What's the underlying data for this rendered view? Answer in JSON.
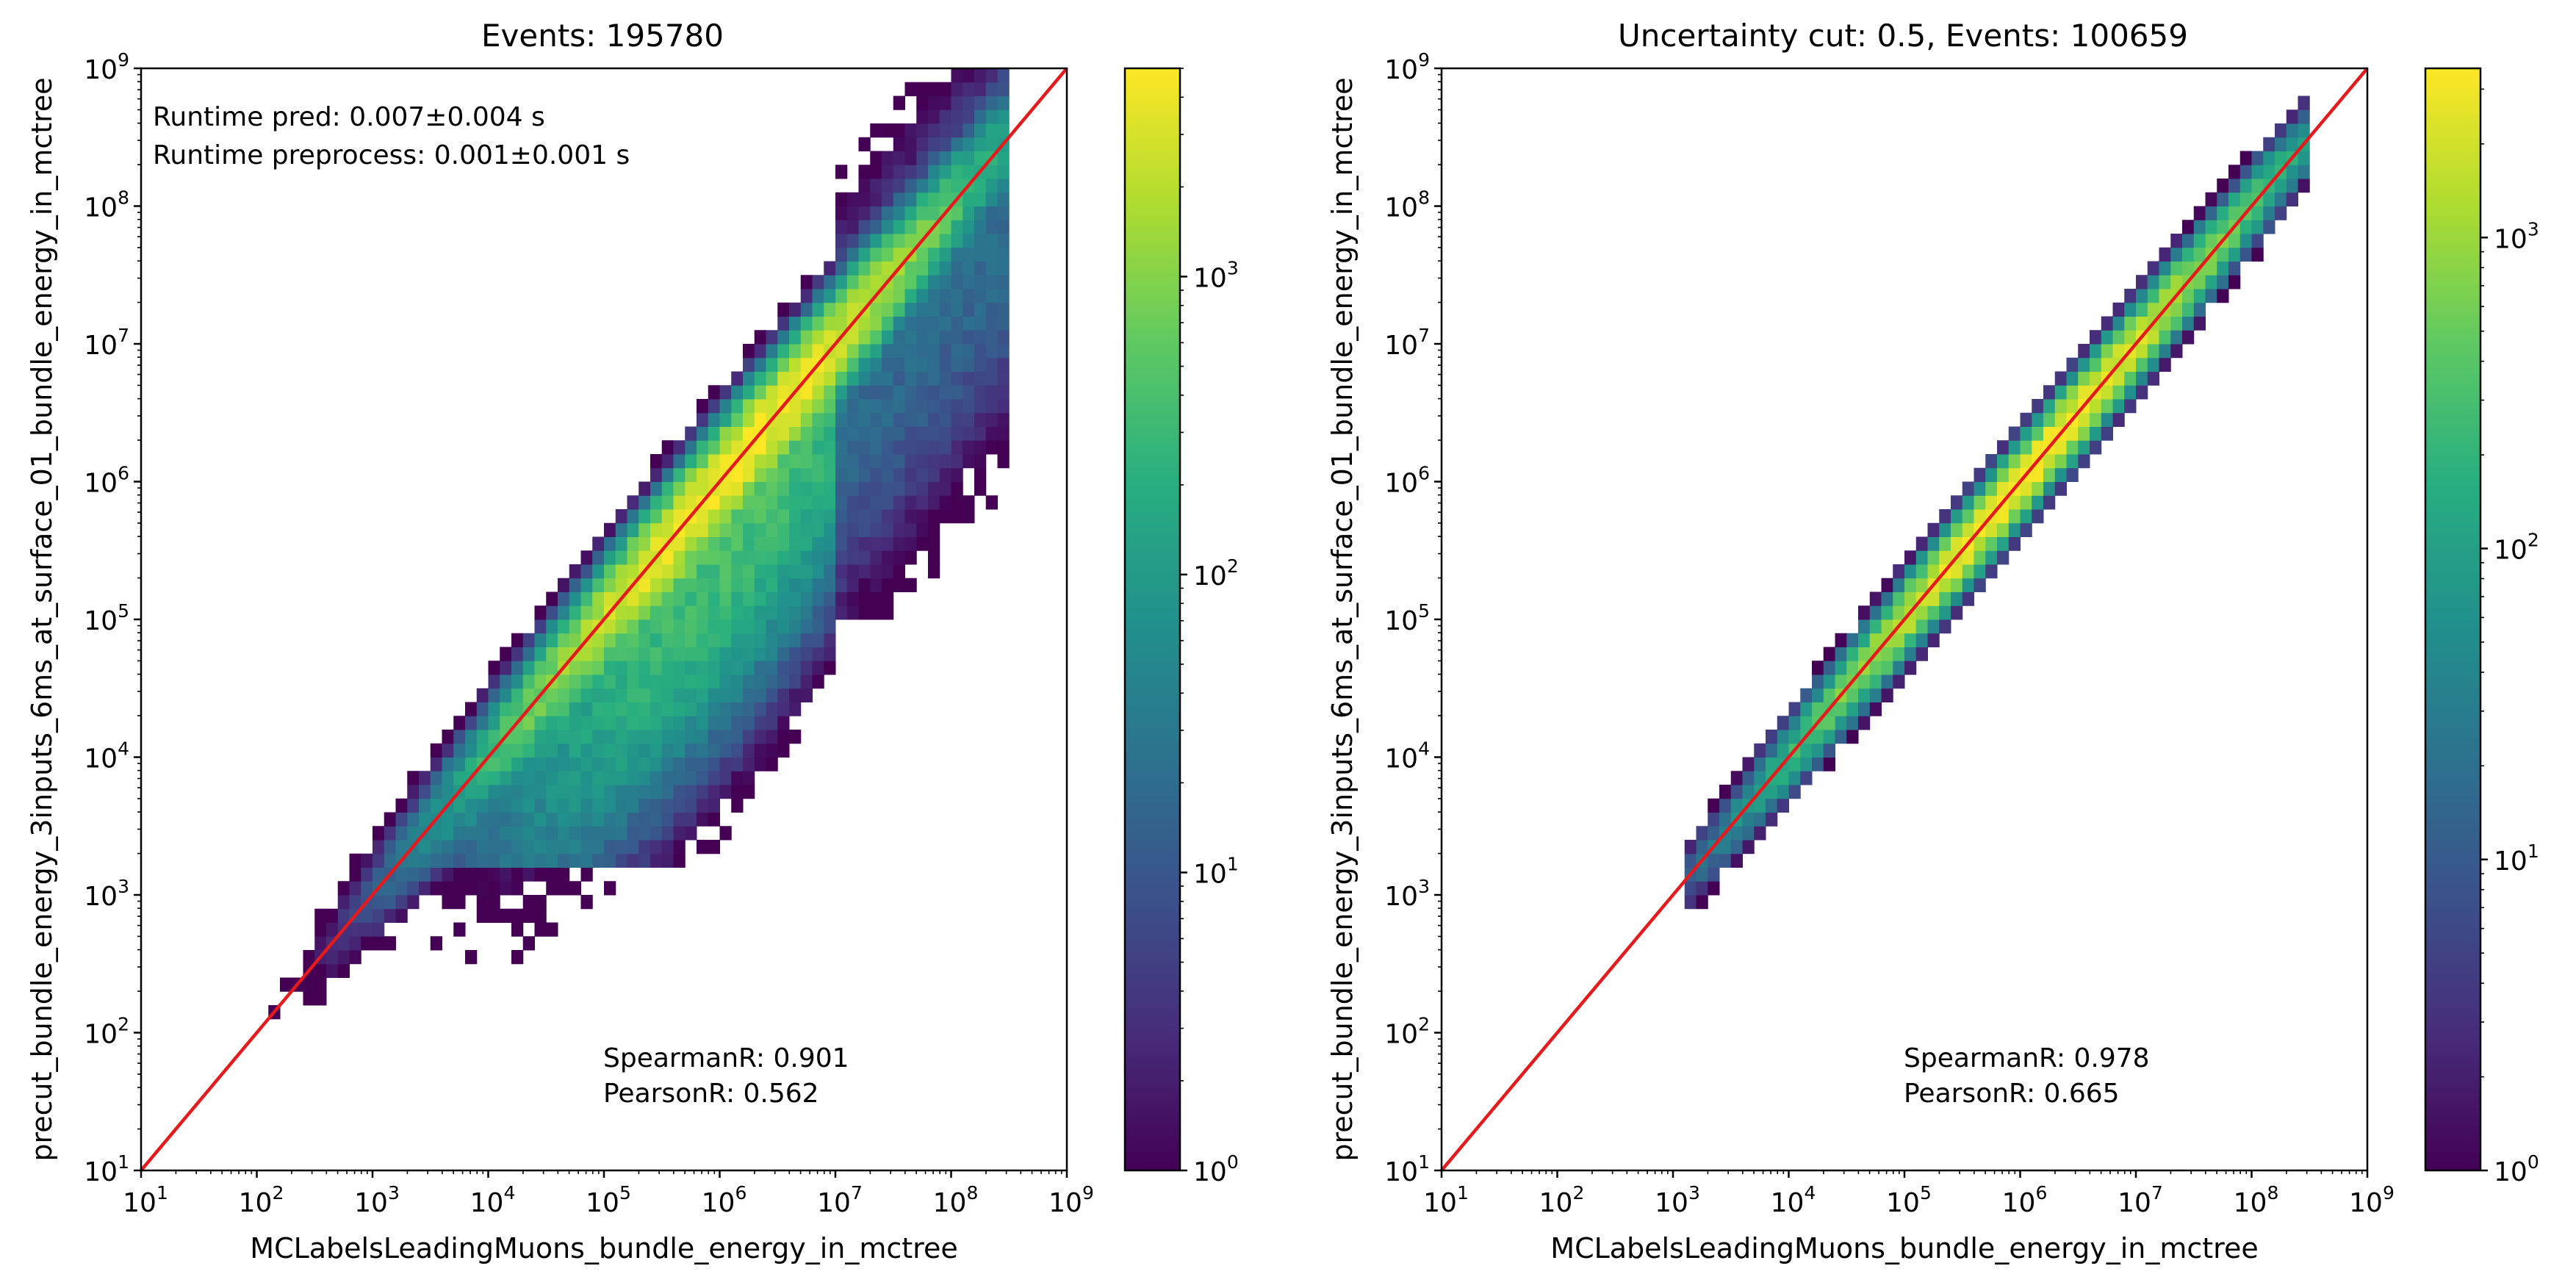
{
  "chart_data": [
    {
      "type": "heatmap",
      "title": "Events: 195780",
      "xlabel": "MCLabelsLeadingMuons_bundle_energy_in_mctree",
      "ylabel": "precut_bundle_energy_3inputs_6ms_at_surface_01_bundle_energy_in_mctree",
      "x_scale": "log",
      "y_scale": "log",
      "xlim": [
        10,
        1000000000
      ],
      "ylim": [
        10,
        1000000000
      ],
      "x_tick_exponents": [
        1,
        2,
        3,
        4,
        5,
        6,
        7,
        8,
        9
      ],
      "y_tick_exponents": [
        1,
        2,
        3,
        4,
        5,
        6,
        7,
        8,
        9
      ],
      "tick_base": "10",
      "annotations": [
        "Runtime pred: 0.007±0.004 s",
        "Runtime preprocess: 0.001±0.001 s"
      ],
      "stats": [
        "SpearmanR: 0.901",
        "PearsonR: 0.562"
      ],
      "reference_line": {
        "type": "y=x",
        "color": "#e41a1c"
      },
      "colorbar": {
        "scale": "log",
        "min": 1,
        "max": 5000,
        "tick_exponents": [
          0,
          1,
          2,
          3
        ],
        "colormap": "viridis"
      },
      "density_model": {
        "core_width_dex": 0.16,
        "core_max_count": 5000,
        "core_x_range": [
          3,
          7
        ],
        "lower_tail": true,
        "upper_tail_above_1e7": true
      },
      "grid": false
    },
    {
      "type": "heatmap",
      "title": "Uncertainty cut: 0.5, Events: 100659",
      "xlabel": "MCLabelsLeadingMuons_bundle_energy_in_mctree",
      "ylabel": "precut_bundle_energy_3inputs_6ms_at_surface_01_bundle_energy_in_mctree",
      "x_scale": "log",
      "y_scale": "log",
      "xlim": [
        10,
        1000000000
      ],
      "ylim": [
        10,
        1000000000
      ],
      "x_tick_exponents": [
        1,
        2,
        3,
        4,
        5,
        6,
        7,
        8,
        9
      ],
      "y_tick_exponents": [
        1,
        2,
        3,
        4,
        5,
        6,
        7,
        8,
        9
      ],
      "tick_base": "10",
      "annotations": [],
      "stats": [
        "SpearmanR: 0.978",
        "PearsonR: 0.665"
      ],
      "reference_line": {
        "type": "y=x",
        "color": "#e41a1c"
      },
      "colorbar": {
        "scale": "log",
        "min": 1,
        "max": 3500,
        "tick_exponents": [
          0,
          1,
          2,
          3
        ],
        "colormap": "viridis"
      },
      "density_model": {
        "core_width_dex": 0.11,
        "core_max_count": 3500,
        "core_x_range": [
          4,
          7
        ],
        "lower_tail": false,
        "upper_tail_above_1e7": false
      },
      "grid": false
    }
  ]
}
